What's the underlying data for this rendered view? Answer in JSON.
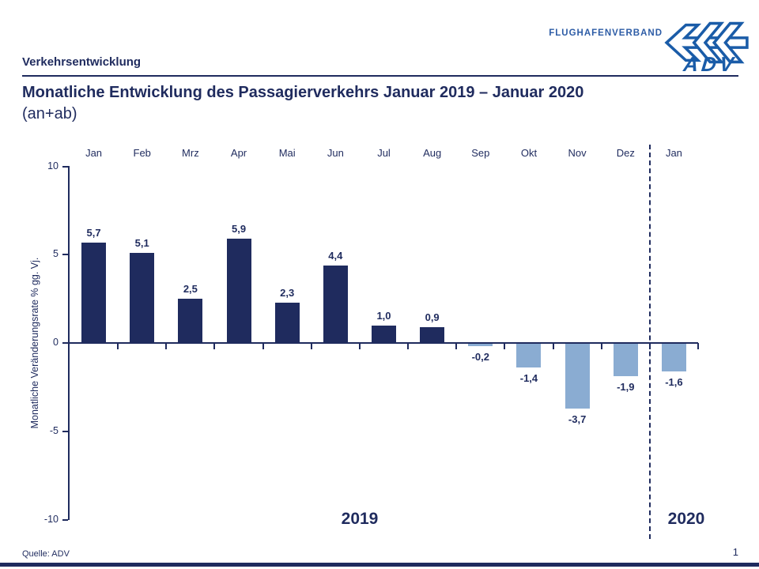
{
  "header": {
    "brand_text": "FLUGHAFENVERBAND",
    "brand_wordmark": "ADV",
    "section_label": "Verkehrsentwicklung"
  },
  "title": {
    "line1": "Monatliche Entwicklung des Passagierverkehrs Januar 2019 – Januar 2020",
    "line2": "(an+ab)"
  },
  "chart_data": {
    "type": "bar",
    "title": "Monatliche Entwicklung des Passagierverkehrs Januar 2019 – Januar 2020 (an+ab)",
    "categories": [
      "Jan",
      "Feb",
      "Mrz",
      "Apr",
      "Mai",
      "Jun",
      "Jul",
      "Aug",
      "Sep",
      "Okt",
      "Nov",
      "Dez",
      "Jan"
    ],
    "values": [
      5.7,
      5.1,
      2.5,
      5.9,
      2.3,
      4.4,
      1.0,
      0.9,
      -0.2,
      -1.4,
      -3.7,
      -1.9,
      -1.6
    ],
    "value_labels": [
      "5,7",
      "5,1",
      "2,5",
      "5,9",
      "2,3",
      "4,4",
      "1,0",
      "0,9",
      "-0,2",
      "-1,4",
      "-3,7",
      "-1,9",
      "-1,6"
    ],
    "ylabel": "Monatliche Veränderungsrate % gg. Vj.",
    "yticks": [
      10,
      5,
      0,
      -5,
      -10
    ],
    "ylim": [
      -10,
      10
    ],
    "grid": false,
    "legend": "none",
    "bar_color_positive": "#1F2B5E",
    "bar_color_negative": "#8AACD2",
    "year_groups": [
      {
        "label": "2019",
        "months": 12
      },
      {
        "label": "2020",
        "months": 1
      }
    ],
    "separator_after_index": 11
  },
  "footer": {
    "source": "Quelle: ADV",
    "page_number": "1"
  }
}
